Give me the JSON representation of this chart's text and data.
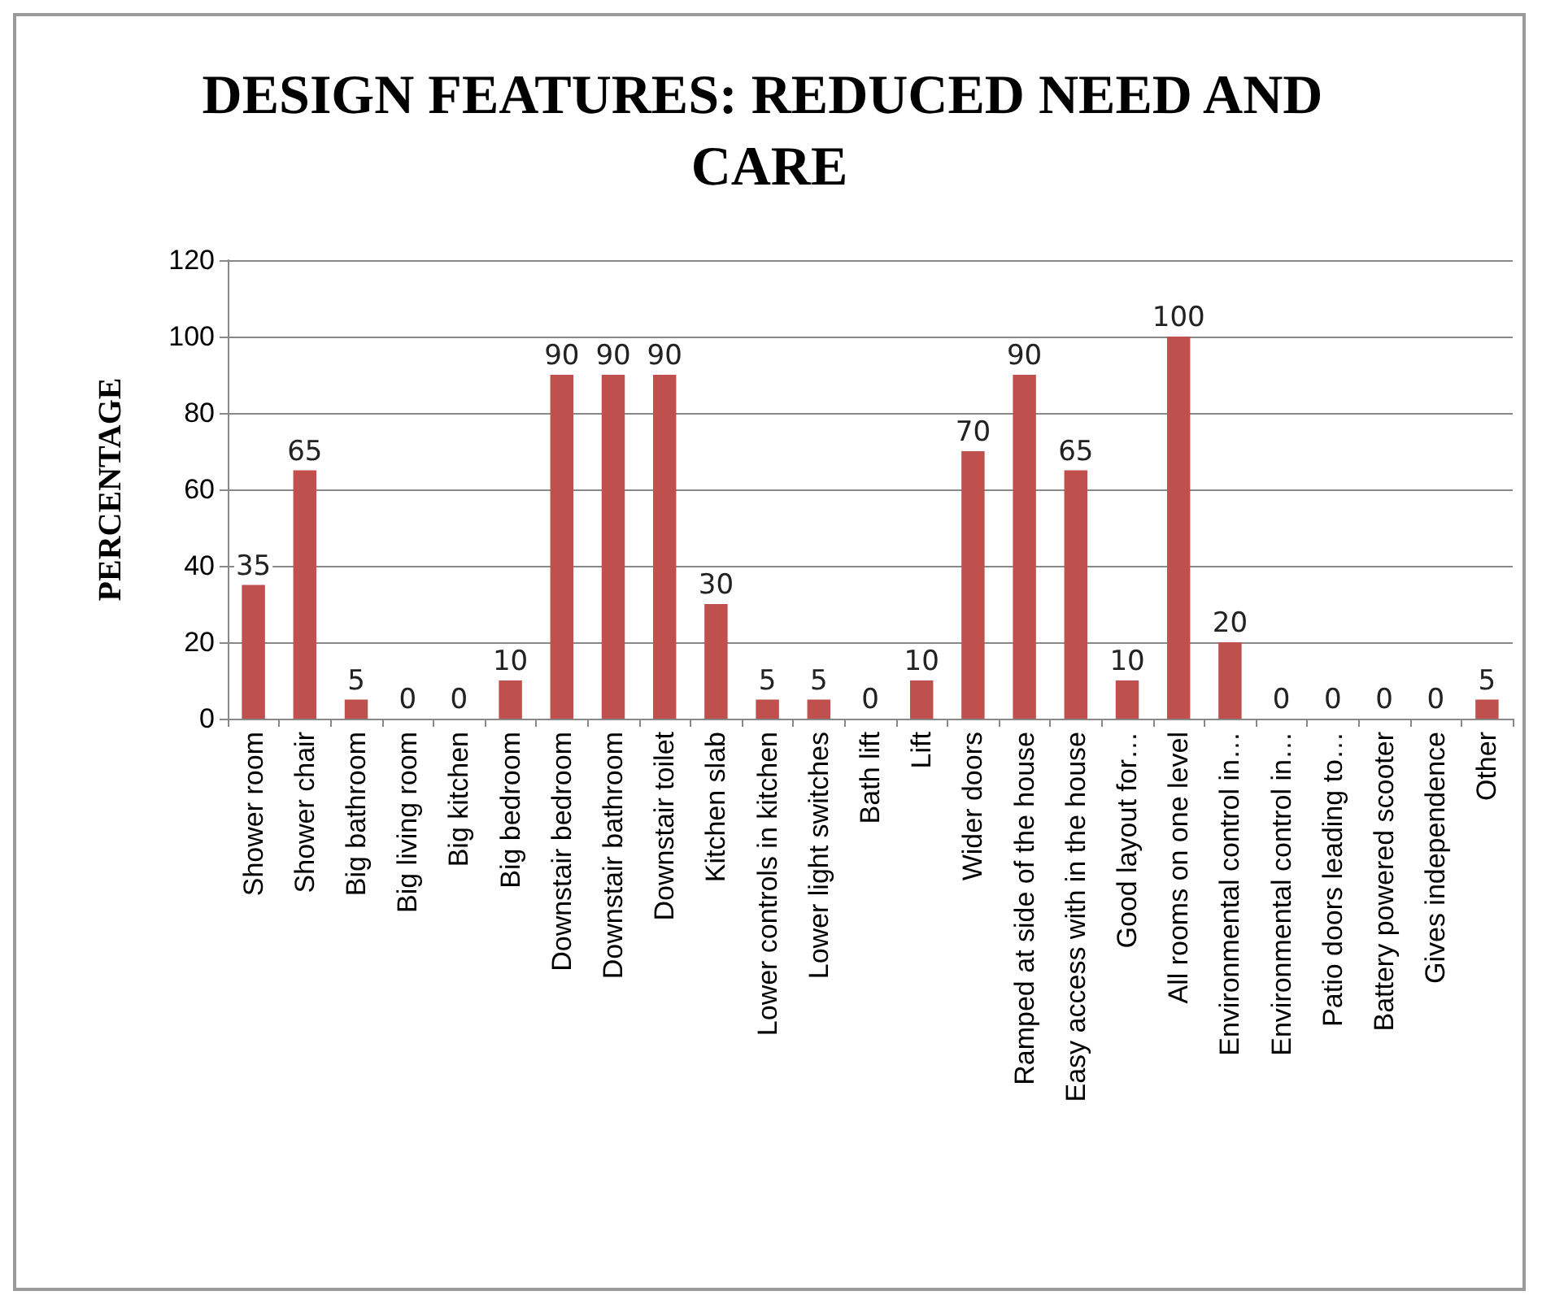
{
  "chart_data": {
    "type": "bar",
    "title": "DESIGN FEATURES: REDUCED NEED AND CARE",
    "ylabel": "PERCENTAGE",
    "categories": [
      "Shower room",
      "Shower chair",
      "Big bathroom",
      "Big living room",
      "Big kitchen",
      "Big bedroom",
      "Downstair bedroom",
      "Downstair bathroom",
      "Downstair toilet",
      "Kitchen slab",
      "Lower controls in kitchen",
      "Lower light switches",
      "Bath lift",
      "Lift",
      "Wider doors",
      "Ramped at side of the house",
      "Easy access with in the house",
      "Good layout for…",
      "All rooms on one level",
      "Environmental control in…",
      "Environmental control in…",
      "Patio doors leading to…",
      "Battery powered scooter",
      "Gives independence",
      "Other"
    ],
    "values": [
      35,
      65,
      5,
      0,
      0,
      10,
      90,
      90,
      90,
      30,
      5,
      5,
      0,
      10,
      70,
      90,
      65,
      10,
      100,
      20,
      0,
      0,
      0,
      0,
      5
    ],
    "color": "#c0504d",
    "ylim": [
      0,
      120
    ],
    "yticks": [
      0,
      20,
      40,
      60,
      80,
      100,
      120
    ],
    "grid": "y",
    "data_labels": true
  }
}
